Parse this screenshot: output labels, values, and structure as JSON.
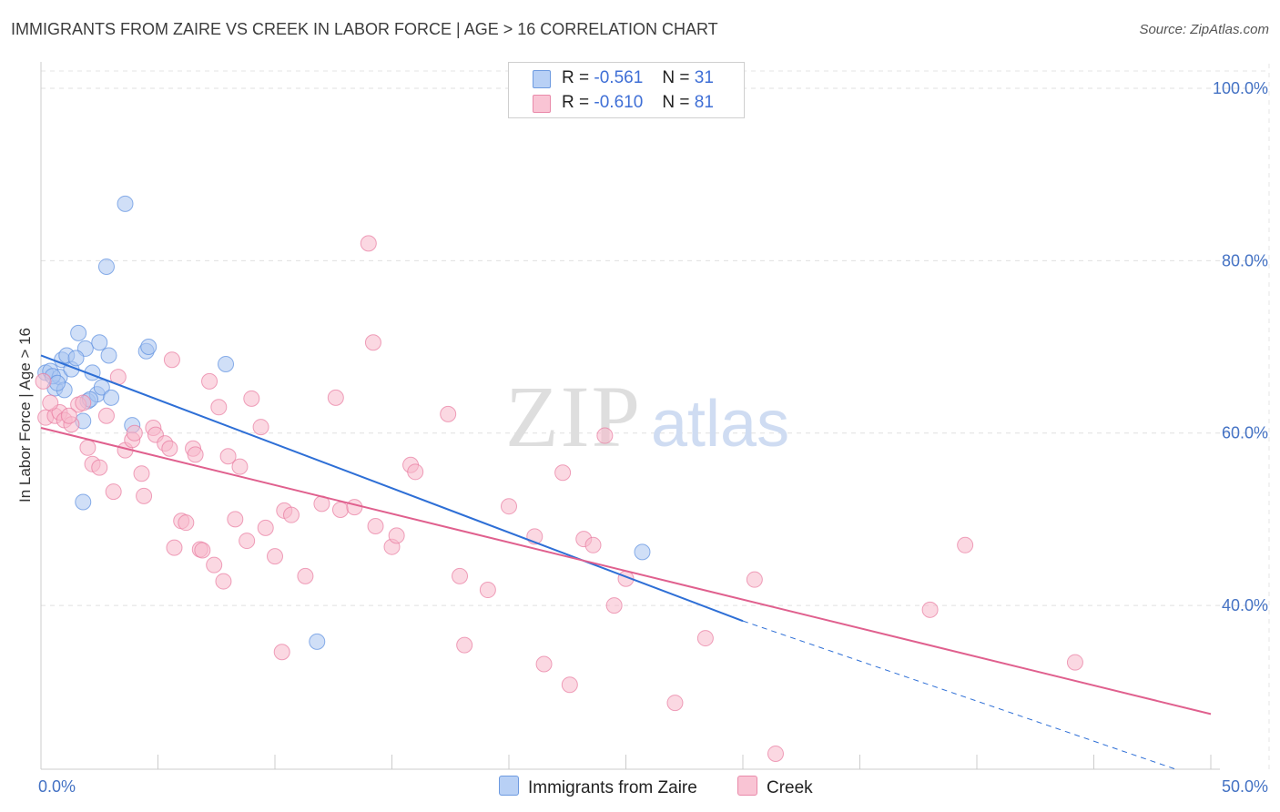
{
  "title": "IMMIGRANTS FROM ZAIRE VS CREEK IN LABOR FORCE | AGE > 16 CORRELATION CHART",
  "source": "Source: ZipAtlas.com",
  "watermark": {
    "zip": "ZIP",
    "atlas": "atlas"
  },
  "legend": {
    "r_label": "R =",
    "n_label": "N =",
    "rows": [
      {
        "r": "-0.561",
        "n": "31"
      },
      {
        "r": "-0.610",
        "n": "81"
      }
    ]
  },
  "chart_data": {
    "type": "scatter",
    "title": "IMMIGRANTS FROM ZAIRE VS CREEK IN LABOR FORCE | AGE > 16 CORRELATION CHART",
    "xlabel": "",
    "ylabel": "In Labor Force | Age > 16",
    "xlim": [
      0,
      50
    ],
    "ylim": [
      21,
      102
    ],
    "y_ticks": [
      40,
      60,
      80,
      100
    ],
    "y_tick_labels": [
      "40.0%",
      "60.0%",
      "80.0%",
      "100.0%"
    ],
    "x_tick_labels": [
      "0.0%",
      "50.0%"
    ],
    "grid": true,
    "series": [
      {
        "name": "Immigrants from Zaire",
        "color": "#a9c4f0",
        "edge": "#5b8fe0",
        "line_color": "#2e6fd6",
        "r": -0.561,
        "n": 31,
        "trend": {
          "x0": 0,
          "y0": 69,
          "x1": 30,
          "y1": 38.2,
          "dash_to_x": 48.5,
          "dash_to_y": 21
        },
        "points": [
          [
            0.2,
            67
          ],
          [
            0.4,
            67.2
          ],
          [
            0.6,
            65.2
          ],
          [
            0.8,
            66.5
          ],
          [
            0.9,
            68.5
          ],
          [
            1.0,
            65
          ],
          [
            1.1,
            69
          ],
          [
            1.3,
            67.4
          ],
          [
            1.6,
            71.6
          ],
          [
            1.8,
            61.4
          ],
          [
            1.9,
            69.8
          ],
          [
            2.0,
            63.7
          ],
          [
            2.2,
            67
          ],
          [
            2.4,
            64.5
          ],
          [
            2.5,
            70.5
          ],
          [
            2.6,
            65.3
          ],
          [
            2.9,
            69
          ],
          [
            3.0,
            64.1
          ],
          [
            3.6,
            86.6
          ],
          [
            2.8,
            79.3
          ],
          [
            3.9,
            60.9
          ],
          [
            4.5,
            69.5
          ],
          [
            4.6,
            70
          ],
          [
            7.9,
            68
          ],
          [
            1.8,
            52
          ],
          [
            11.8,
            35.8
          ],
          [
            25.7,
            46.2
          ],
          [
            0.5,
            66.6
          ],
          [
            1.5,
            68.7
          ],
          [
            0.7,
            65.8
          ],
          [
            2.1,
            63.9
          ]
        ]
      },
      {
        "name": "Creek",
        "color": "#f7b8cb",
        "edge": "#e87aa0",
        "line_color": "#e0608e",
        "r": -0.61,
        "n": 81,
        "trend": {
          "x0": 0,
          "y0": 60.6,
          "x1": 50,
          "y1": 27.4
        },
        "points": [
          [
            0.1,
            66
          ],
          [
            0.2,
            61.8
          ],
          [
            0.6,
            62
          ],
          [
            0.8,
            62.4
          ],
          [
            1.0,
            61.5
          ],
          [
            1.3,
            61
          ],
          [
            1.6,
            63.3
          ],
          [
            1.8,
            63.5
          ],
          [
            2.0,
            58.3
          ],
          [
            2.2,
            56.4
          ],
          [
            2.5,
            56
          ],
          [
            2.8,
            62
          ],
          [
            3.1,
            53.2
          ],
          [
            3.3,
            66.5
          ],
          [
            3.6,
            58
          ],
          [
            3.9,
            59.2
          ],
          [
            4.0,
            60
          ],
          [
            4.3,
            55.3
          ],
          [
            4.4,
            52.7
          ],
          [
            4.8,
            60.6
          ],
          [
            4.9,
            59.8
          ],
          [
            5.3,
            58.8
          ],
          [
            5.5,
            58.2
          ],
          [
            5.6,
            68.5
          ],
          [
            5.7,
            46.7
          ],
          [
            6.0,
            49.8
          ],
          [
            6.2,
            49.6
          ],
          [
            6.5,
            58.2
          ],
          [
            6.6,
            57.5
          ],
          [
            6.8,
            46.5
          ],
          [
            7.2,
            66
          ],
          [
            7.4,
            44.7
          ],
          [
            7.6,
            63
          ],
          [
            7.8,
            42.8
          ],
          [
            8.0,
            57.3
          ],
          [
            8.3,
            50
          ],
          [
            8.5,
            56.1
          ],
          [
            8.8,
            47.5
          ],
          [
            9.0,
            64
          ],
          [
            9.4,
            60.7
          ],
          [
            9.6,
            49
          ],
          [
            10.0,
            45.7
          ],
          [
            10.3,
            34.6
          ],
          [
            10.4,
            51
          ],
          [
            10.7,
            50.5
          ],
          [
            11.3,
            43.4
          ],
          [
            12.0,
            51.8
          ],
          [
            12.6,
            64.1
          ],
          [
            12.8,
            51.1
          ],
          [
            13.4,
            51.4
          ],
          [
            14.0,
            82
          ],
          [
            14.2,
            70.5
          ],
          [
            14.3,
            49.2
          ],
          [
            15.0,
            46.8
          ],
          [
            15.2,
            48.1
          ],
          [
            15.8,
            56.3
          ],
          [
            16.0,
            55.5
          ],
          [
            17.4,
            62.2
          ],
          [
            17.9,
            43.4
          ],
          [
            18.1,
            35.4
          ],
          [
            19.1,
            41.8
          ],
          [
            20.0,
            51.5
          ],
          [
            21.1,
            48
          ],
          [
            21.5,
            33.2
          ],
          [
            22.3,
            55.4
          ],
          [
            22.6,
            30.8
          ],
          [
            23.2,
            47.7
          ],
          [
            23.6,
            47
          ],
          [
            24.1,
            59.7
          ],
          [
            24.5,
            40
          ],
          [
            25.0,
            43.1
          ],
          [
            27.1,
            28.7
          ],
          [
            28.4,
            36.2
          ],
          [
            30.5,
            43
          ],
          [
            31.4,
            22.8
          ],
          [
            38.0,
            39.5
          ],
          [
            39.5,
            47
          ],
          [
            44.2,
            33.4
          ],
          [
            0.4,
            63.5
          ],
          [
            1.2,
            62
          ],
          [
            6.9,
            46.4
          ]
        ]
      }
    ],
    "legend_position": "bottom"
  },
  "bottom_legend": [
    {
      "label": "Immigrants from Zaire"
    },
    {
      "label": "Creek"
    }
  ]
}
